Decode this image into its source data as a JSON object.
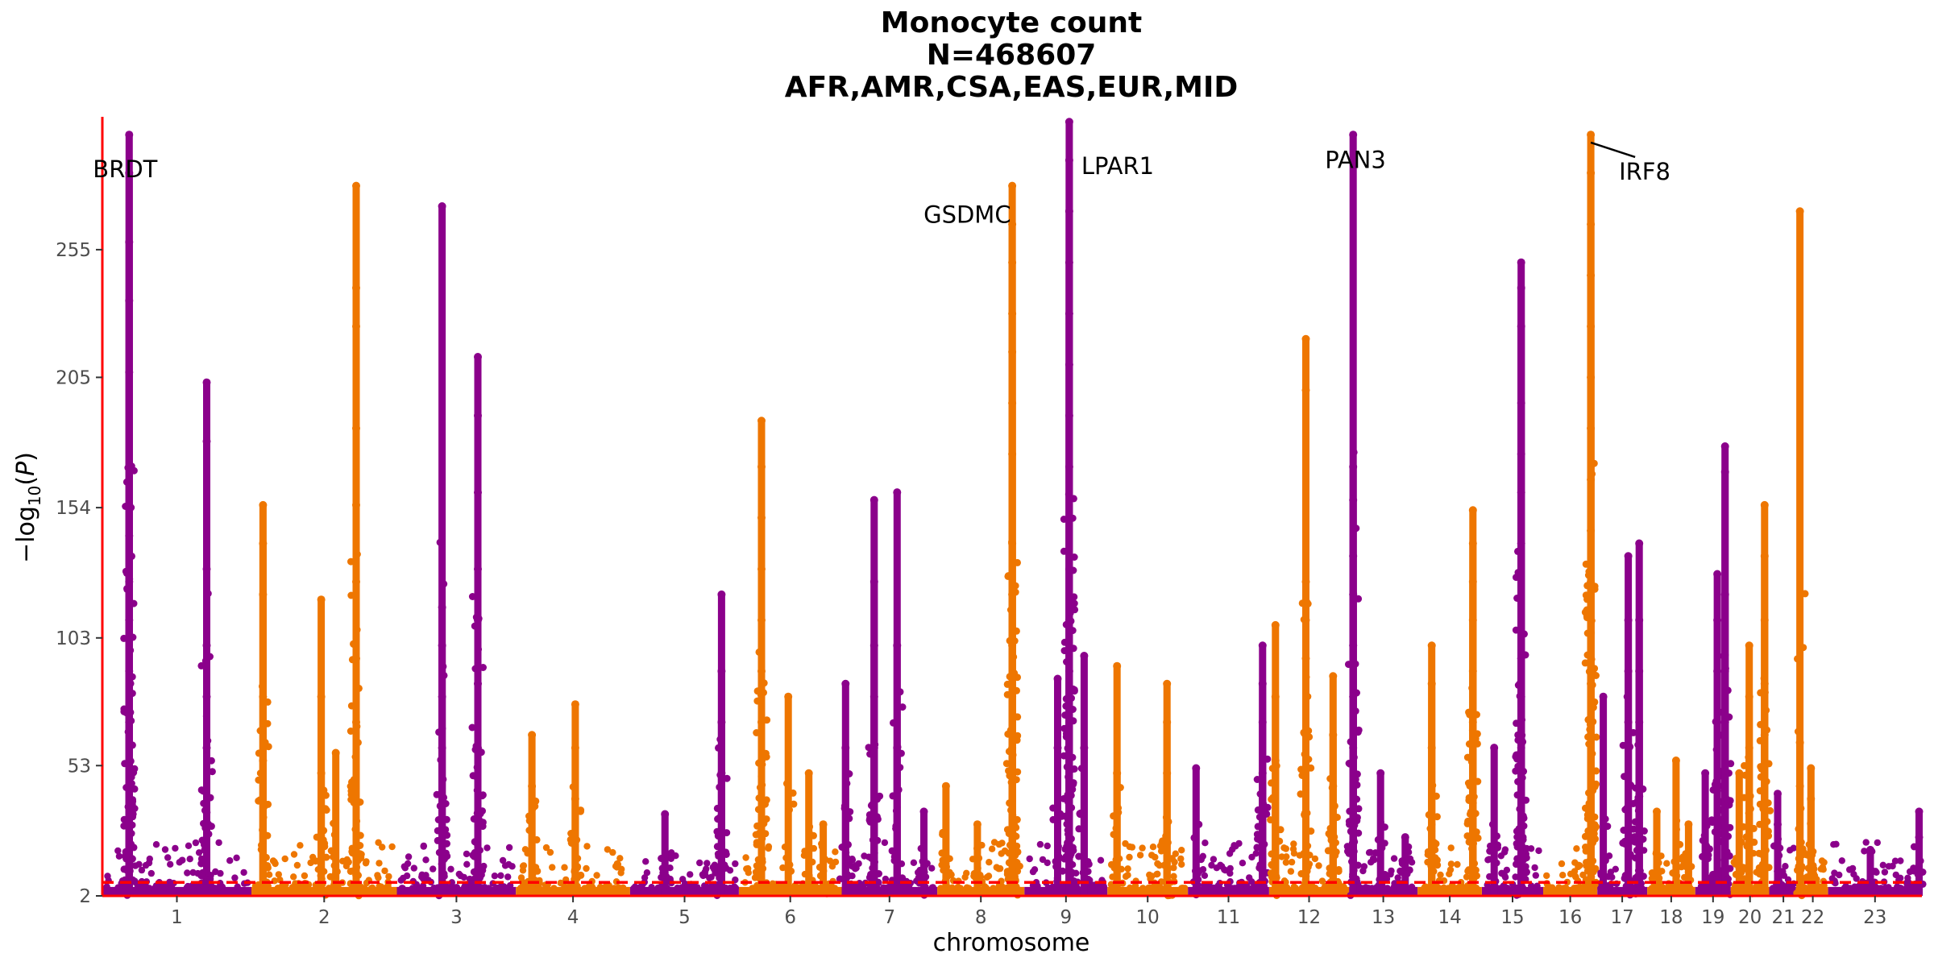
{
  "chart_data": {
    "type": "scatter",
    "subtype": "manhattan",
    "title_lines": [
      "Monocyte count",
      "N=468607",
      "AFR,AMR,CSA,EAS,EUR,MID"
    ],
    "xlabel": "chromosome",
    "ylabel": "−log10(P)",
    "yticks": [
      2,
      53,
      103,
      154,
      205,
      255
    ],
    "ylim": [
      2,
      307
    ],
    "significance_line": 7.3,
    "colors": {
      "odd_chromosome": "#8B008B",
      "even_chromosome": "#EE7600",
      "axis_and_threshold": "#FF0000"
    },
    "grid": false,
    "chromosomes": [
      {
        "label": "1",
        "size": 248,
        "color": "odd",
        "peaks": [
          [
            0.18,
            300
          ],
          [
            0.18,
            285
          ],
          [
            0.18,
            258
          ],
          [
            0.18,
            235
          ],
          [
            0.18,
            207
          ],
          [
            0.18,
            155
          ],
          [
            0.18,
            143
          ],
          [
            0.18,
            125
          ],
          [
            0.18,
            110
          ],
          [
            0.18,
            90
          ],
          [
            0.18,
            70
          ],
          [
            0.7,
            203
          ],
          [
            0.7,
            180
          ],
          [
            0.7,
            130
          ],
          [
            0.7,
            100
          ],
          [
            0.7,
            80
          ],
          [
            0.7,
            60
          ]
        ]
      },
      {
        "label": "2",
        "size": 242,
        "color": "even",
        "peaks": [
          [
            0.08,
            155
          ],
          [
            0.08,
            140
          ],
          [
            0.08,
            120
          ],
          [
            0.08,
            80
          ],
          [
            0.08,
            55
          ],
          [
            0.48,
            118
          ],
          [
            0.48,
            80
          ],
          [
            0.48,
            50
          ],
          [
            0.58,
            58
          ],
          [
            0.72,
            280
          ],
          [
            0.72,
            240
          ],
          [
            0.72,
            225
          ],
          [
            0.72,
            185
          ],
          [
            0.72,
            155
          ],
          [
            0.72,
            125
          ],
          [
            0.72,
            95
          ],
          [
            0.72,
            70
          ]
        ]
      },
      {
        "label": "3",
        "size": 198,
        "color": "odd",
        "peaks": [
          [
            0.38,
            272
          ],
          [
            0.38,
            115
          ],
          [
            0.38,
            100
          ],
          [
            0.38,
            80
          ],
          [
            0.38,
            60
          ],
          [
            0.68,
            213
          ],
          [
            0.68,
            190
          ],
          [
            0.68,
            160
          ],
          [
            0.68,
            130
          ],
          [
            0.68,
            110
          ],
          [
            0.68,
            85
          ],
          [
            0.68,
            60
          ]
        ]
      },
      {
        "label": "4",
        "size": 190,
        "color": "even",
        "peaks": [
          [
            0.14,
            65
          ],
          [
            0.14,
            45
          ],
          [
            0.52,
            77
          ],
          [
            0.52,
            60
          ],
          [
            0.52,
            40
          ]
        ]
      },
      {
        "label": "5",
        "size": 181,
        "color": "odd",
        "peaks": [
          [
            0.32,
            34
          ],
          [
            0.84,
            120
          ],
          [
            0.84,
            90
          ],
          [
            0.84,
            70
          ],
          [
            0.84,
            50
          ]
        ]
      },
      {
        "label": "6",
        "size": 171,
        "color": "even",
        "peaks": [
          [
            0.22,
            188
          ],
          [
            0.22,
            170
          ],
          [
            0.22,
            150
          ],
          [
            0.22,
            130
          ],
          [
            0.22,
            110
          ],
          [
            0.22,
            90
          ],
          [
            0.22,
            70
          ],
          [
            0.22,
            55
          ],
          [
            0.48,
            80
          ],
          [
            0.68,
            50
          ],
          [
            0.82,
            30
          ]
        ]
      },
      {
        "label": "7",
        "size": 159,
        "color": "odd",
        "peaks": [
          [
            0.04,
            85
          ],
          [
            0.04,
            60
          ],
          [
            0.34,
            157
          ],
          [
            0.34,
            125
          ],
          [
            0.34,
            100
          ],
          [
            0.34,
            80
          ],
          [
            0.34,
            60
          ],
          [
            0.58,
            160
          ],
          [
            0.58,
            100
          ],
          [
            0.58,
            60
          ],
          [
            0.86,
            35
          ]
        ]
      },
      {
        "label": "8",
        "size": 145,
        "color": "even",
        "peaks": [
          [
            0.1,
            45
          ],
          [
            0.46,
            30
          ],
          [
            0.86,
            280
          ],
          [
            0.86,
            265
          ],
          [
            0.86,
            250
          ],
          [
            0.86,
            230
          ],
          [
            0.86,
            215
          ],
          [
            0.86,
            195
          ],
          [
            0.86,
            175
          ],
          [
            0.86,
            140
          ],
          [
            0.86,
            120
          ],
          [
            0.86,
            100
          ],
          [
            0.86,
            80
          ],
          [
            0.86,
            60
          ]
        ]
      },
      {
        "label": "9",
        "size": 138,
        "color": "odd",
        "peaks": [
          [
            0.4,
            87
          ],
          [
            0.4,
            60
          ],
          [
            0.54,
            305
          ],
          [
            0.54,
            290
          ],
          [
            0.54,
            270
          ],
          [
            0.54,
            250
          ],
          [
            0.54,
            230
          ],
          [
            0.54,
            210
          ],
          [
            0.54,
            190
          ],
          [
            0.54,
            170
          ],
          [
            0.54,
            150
          ],
          [
            0.54,
            130
          ],
          [
            0.54,
            110
          ],
          [
            0.54,
            90
          ],
          [
            0.54,
            70
          ],
          [
            0.72,
            96
          ],
          [
            0.72,
            60
          ]
        ]
      },
      {
        "label": "10",
        "size": 134,
        "color": "even",
        "peaks": [
          [
            0.12,
            92
          ],
          [
            0.12,
            50
          ],
          [
            0.74,
            85
          ],
          [
            0.74,
            70
          ],
          [
            0.74,
            50
          ]
        ]
      },
      {
        "label": "11",
        "size": 135,
        "color": "odd",
        "peaks": [
          [
            0.1,
            52
          ],
          [
            0.92,
            100
          ],
          [
            0.92,
            85
          ],
          [
            0.92,
            70
          ],
          [
            0.92,
            50
          ]
        ]
      },
      {
        "label": "12",
        "size": 133,
        "color": "even",
        "peaks": [
          [
            0.08,
            108
          ],
          [
            0.08,
            80
          ],
          [
            0.08,
            55
          ],
          [
            0.46,
            220
          ],
          [
            0.46,
            200
          ],
          [
            0.46,
            125
          ],
          [
            0.46,
            110
          ],
          [
            0.46,
            95
          ],
          [
            0.8,
            88
          ],
          [
            0.8,
            65
          ],
          [
            0.8,
            45
          ]
        ]
      },
      {
        "label": "13",
        "size": 114,
        "color": "odd",
        "peaks": [
          [
            0.06,
            300
          ],
          [
            0.06,
            170
          ],
          [
            0.06,
            157
          ],
          [
            0.06,
            135
          ],
          [
            0.06,
            120
          ],
          [
            0.06,
            100
          ],
          [
            0.06,
            80
          ],
          [
            0.06,
            60
          ],
          [
            0.46,
            50
          ],
          [
            0.82,
            25
          ]
        ]
      },
      {
        "label": "14",
        "size": 107,
        "color": "even",
        "peaks": [
          [
            0.22,
            100
          ],
          [
            0.22,
            85
          ],
          [
            0.22,
            60
          ],
          [
            0.86,
            153
          ],
          [
            0.86,
            140
          ],
          [
            0.86,
            125
          ],
          [
            0.86,
            110
          ],
          [
            0.86,
            90
          ],
          [
            0.86,
            70
          ]
        ]
      },
      {
        "label": "15",
        "size": 102,
        "color": "odd",
        "peaks": [
          [
            0.2,
            60
          ],
          [
            0.64,
            250
          ],
          [
            0.64,
            240
          ],
          [
            0.64,
            225
          ],
          [
            0.64,
            195
          ],
          [
            0.64,
            175
          ],
          [
            0.64,
            160
          ],
          [
            0.64,
            140
          ],
          [
            0.64,
            95
          ],
          [
            0.64,
            80
          ],
          [
            0.64,
            60
          ]
        ]
      },
      {
        "label": "16",
        "size": 90,
        "color": "even",
        "peaks": [
          [
            0.88,
            300
          ],
          [
            0.88,
            285
          ],
          [
            0.88,
            265
          ],
          [
            0.88,
            245
          ],
          [
            0.88,
            225
          ],
          [
            0.88,
            205
          ],
          [
            0.88,
            185
          ],
          [
            0.88,
            165
          ],
          [
            0.88,
            145
          ],
          [
            0.88,
            125
          ],
          [
            0.88,
            105
          ],
          [
            0.88,
            85
          ],
          [
            0.88,
            65
          ]
        ]
      },
      {
        "label": "17",
        "size": 83,
        "color": "odd",
        "peaks": [
          [
            0.12,
            80
          ],
          [
            0.62,
            135
          ],
          [
            0.62,
            110
          ],
          [
            0.62,
            90
          ],
          [
            0.62,
            70
          ],
          [
            0.84,
            140
          ],
          [
            0.84,
            110
          ],
          [
            0.84,
            90
          ],
          [
            0.84,
            70
          ]
        ]
      },
      {
        "label": "18",
        "size": 80,
        "color": "even",
        "peaks": [
          [
            0.2,
            35
          ],
          [
            0.6,
            55
          ],
          [
            0.86,
            30
          ]
        ]
      },
      {
        "label": "19",
        "size": 59,
        "color": "odd",
        "peaks": [
          [
            0.28,
            50
          ],
          [
            0.62,
            128
          ],
          [
            0.62,
            110
          ],
          [
            0.62,
            90
          ],
          [
            0.62,
            70
          ],
          [
            0.84,
            178
          ],
          [
            0.84,
            168
          ],
          [
            0.84,
            120
          ],
          [
            0.84,
            90
          ],
          [
            0.84,
            70
          ]
        ]
      },
      {
        "label": "20",
        "size": 64,
        "color": "even",
        "peaks": [
          [
            0.22,
            50
          ],
          [
            0.48,
            100
          ],
          [
            0.48,
            80
          ],
          [
            0.48,
            60
          ],
          [
            0.88,
            155
          ],
          [
            0.88,
            135
          ],
          [
            0.88,
            110
          ],
          [
            0.88,
            85
          ],
          [
            0.88,
            65
          ]
        ]
      },
      {
        "label": "21",
        "size": 47,
        "color": "odd",
        "peaks": [
          [
            0.3,
            42
          ],
          [
            0.3,
            30
          ]
        ]
      },
      {
        "label": "22",
        "size": 51,
        "color": "even",
        "peaks": [
          [
            0.08,
            270
          ],
          [
            0.08,
            62
          ],
          [
            0.08,
            45
          ],
          [
            0.44,
            52
          ],
          [
            0.44,
            40
          ]
        ]
      },
      {
        "label": "23",
        "size": 156,
        "color": "odd",
        "peaks": [
          [
            0.45,
            20
          ],
          [
            0.97,
            35
          ],
          [
            0.97,
            25
          ]
        ]
      }
    ],
    "annotations": [
      {
        "gene": "BRDT",
        "chromosome": "1",
        "pos": 0.18,
        "y": 296
      },
      {
        "gene": "GSDMC",
        "chromosome": "8",
        "pos": 0.86,
        "y": 275
      },
      {
        "gene": "LPAR1",
        "chromosome": "9",
        "pos": 0.54,
        "y": 296
      },
      {
        "gene": "PAN3",
        "chromosome": "13",
        "pos": 0.06,
        "y": 297
      },
      {
        "gene": "IRF8",
        "chromosome": "16",
        "pos": 0.88,
        "y": 296
      }
    ]
  }
}
